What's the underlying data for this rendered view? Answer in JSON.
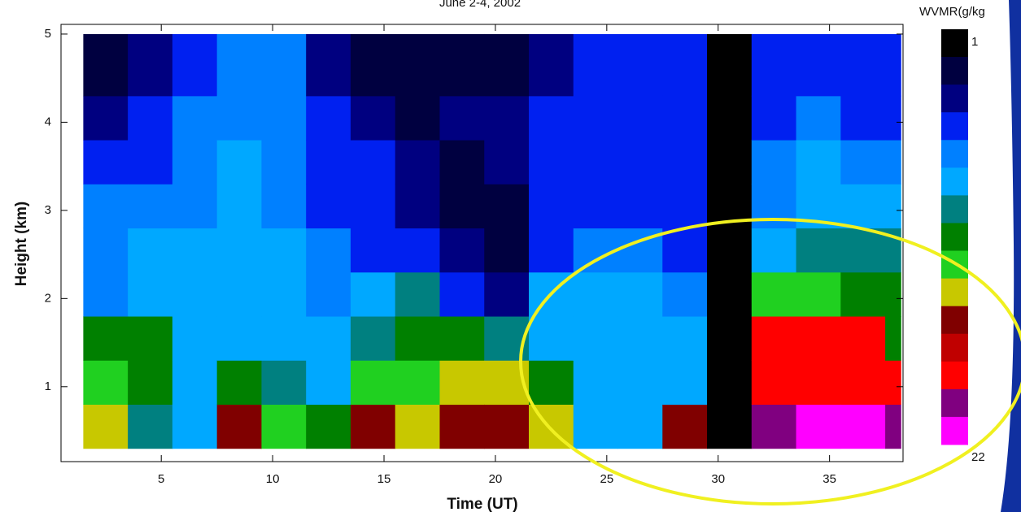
{
  "chart_data": {
    "type": "heatmap",
    "title": "June 2-4, 2002",
    "x_label": "Time (UT)",
    "y_label": "Height (km)",
    "xlim": [
      0.5,
      38.3
    ],
    "ylim": [
      0.15,
      5.11
    ],
    "xticks": [
      5,
      10,
      15,
      20,
      25,
      30,
      35
    ],
    "yticks": [
      1,
      2,
      3,
      4,
      5
    ],
    "x_edges": [
      1.5,
      3.5,
      5.5,
      7.5,
      9.5,
      11.5,
      13.5,
      15.5,
      17.5,
      19.5,
      21.5,
      23.5,
      25.5,
      27.5,
      29.5,
      31.5,
      33.5,
      35.5,
      37.5,
      38.2
    ],
    "y_edges": [
      0.3,
      0.8,
      1.3,
      1.8,
      2.3,
      2.8,
      3.3,
      3.8,
      4.3,
      5.0
    ],
    "z": [
      [
        14,
        13,
        11.5,
        7,
        7,
        7,
        6,
        4.5,
        3
      ],
      [
        10,
        11.5,
        11.5,
        8.5,
        8.5,
        7,
        6,
        6,
        4.5
      ],
      [
        8.5,
        8.5,
        8.5,
        8.5,
        8.5,
        7,
        7,
        7,
        6
      ],
      [
        15.5,
        11.5,
        8.5,
        8.5,
        8.5,
        8.5,
        8.5,
        7,
        7
      ],
      [
        13,
        10,
        8.5,
        8.5,
        8.5,
        7,
        7,
        7,
        7
      ],
      [
        11.5,
        8.5,
        8.5,
        7,
        7,
        6,
        6,
        6,
        4.5
      ],
      [
        15.5,
        13,
        10,
        8.5,
        6,
        6,
        6,
        4.5,
        3
      ],
      [
        14,
        13,
        11.5,
        10,
        6,
        4.5,
        4.5,
        3,
        3
      ],
      [
        15.5,
        14,
        11.5,
        6,
        4.5,
        3,
        3,
        4.5,
        3
      ],
      [
        15.5,
        14,
        10,
        4.5,
        3,
        3,
        4.5,
        4.5,
        3
      ],
      [
        14,
        11.5,
        8.5,
        8.5,
        6,
        6,
        6,
        6,
        4.5
      ],
      [
        8.5,
        8.5,
        8.5,
        8.5,
        7,
        6,
        6,
        6,
        6
      ],
      [
        8.5,
        8.5,
        8.5,
        8.5,
        7,
        6,
        6,
        6,
        6
      ],
      [
        15.5,
        8.5,
        8.5,
        7,
        6,
        6,
        6,
        6,
        6
      ],
      [
        1.5,
        1.5,
        1.5,
        1.5,
        1.5,
        1.5,
        1.5,
        1.5,
        1.5
      ],
      [
        20,
        18,
        18,
        13,
        8.5,
        7,
        7,
        6,
        6
      ],
      [
        21,
        18,
        18,
        13,
        10,
        8.5,
        8.5,
        7,
        6
      ],
      [
        21,
        18,
        18,
        11.5,
        10,
        8.5,
        7,
        6,
        6
      ],
      [
        20,
        18,
        11.5,
        11.5,
        10,
        8.5,
        7,
        6,
        6
      ]
    ],
    "colorbar_title": "WVMR(g/kg",
    "zlim": [
      1,
      22
    ],
    "colorbar_ticks": [
      1,
      22
    ],
    "colorscale": [
      "#000000",
      "#000040",
      "#000080",
      "#0020f0",
      "#0080ff",
      "#00a8ff",
      "#008080",
      "#008000",
      "#20d020",
      "#c8c800",
      "#800000",
      "#c00000",
      "#ff0000",
      "#800080",
      "#ff00ff"
    ]
  }
}
